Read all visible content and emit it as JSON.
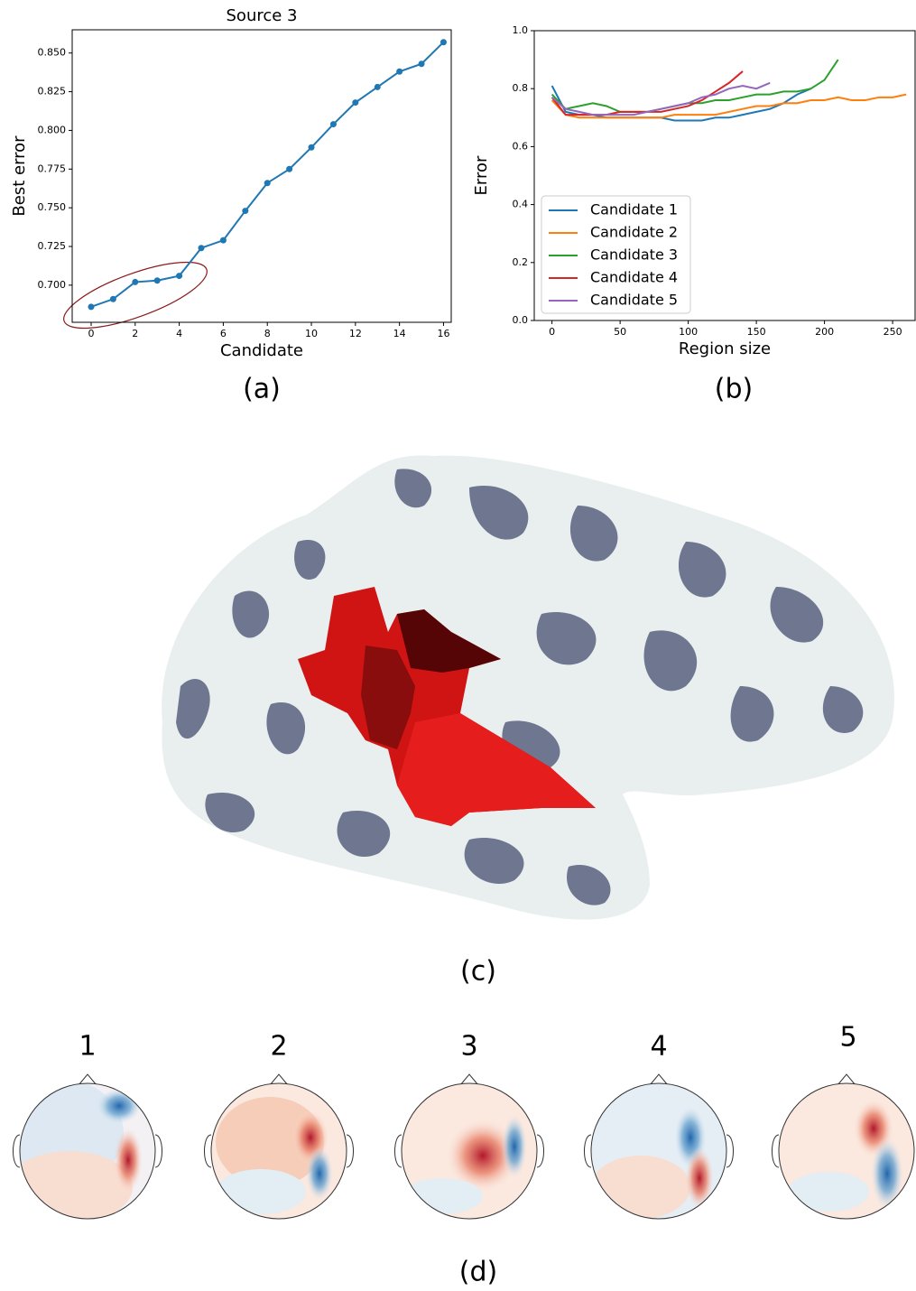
{
  "chart_data": [
    {
      "type": "line",
      "title": "Source 3",
      "xlabel": "Candidate",
      "ylabel": "Best error",
      "x": [
        0,
        1,
        2,
        3,
        4,
        5,
        6,
        7,
        8,
        9,
        10,
        11,
        12,
        13,
        14,
        15,
        16
      ],
      "values": [
        0.686,
        0.691,
        0.702,
        0.703,
        0.706,
        0.724,
        0.729,
        0.748,
        0.766,
        0.775,
        0.789,
        0.804,
        0.818,
        0.828,
        0.838,
        0.843,
        0.857
      ],
      "color": "#1f77b4",
      "markers": true,
      "xlim": [
        -0.86,
        16.35
      ],
      "ylim": [
        0.676,
        0.865
      ],
      "xticks": [
        0,
        2,
        4,
        6,
        8,
        10,
        12,
        14,
        16
      ],
      "yticks": [
        {
          "value": 0.7,
          "label": "0.700"
        },
        {
          "value": 0.725,
          "label": "0.725"
        },
        {
          "value": 0.75,
          "label": "0.750"
        },
        {
          "value": 0.775,
          "label": "0.775"
        },
        {
          "value": 0.8,
          "label": "0.800"
        },
        {
          "value": 0.825,
          "label": "0.825"
        },
        {
          "value": 0.85,
          "label": "0.850"
        }
      ]
    },
    {
      "type": "line",
      "xlabel": "Region size",
      "ylabel": "Error",
      "legend": "lower left",
      "markers": false,
      "x": [
        0,
        10,
        20,
        30,
        40,
        50,
        60,
        70,
        80,
        90,
        100,
        110,
        120,
        130,
        140,
        150,
        160,
        170,
        180,
        190,
        200,
        210,
        220,
        230,
        240,
        250,
        260
      ],
      "series": [
        {
          "name": "Candidate 1",
          "color": "#1f77b4",
          "values": [
            0.81,
            0.72,
            0.71,
            0.71,
            0.7,
            0.7,
            0.7,
            0.7,
            0.7,
            0.69,
            0.69,
            0.69,
            0.7,
            0.7,
            0.71,
            0.72,
            0.73,
            0.75,
            0.78,
            0.8,
            null,
            null,
            null,
            null,
            null,
            null,
            null
          ]
        },
        {
          "name": "Candidate 2",
          "color": "#ff7f0e",
          "values": [
            0.76,
            0.71,
            0.7,
            0.7,
            0.7,
            0.7,
            0.7,
            0.7,
            0.7,
            0.71,
            0.71,
            0.71,
            0.71,
            0.72,
            0.73,
            0.74,
            0.74,
            0.75,
            0.75,
            0.76,
            0.76,
            0.77,
            0.76,
            0.76,
            0.77,
            0.77,
            0.78
          ]
        },
        {
          "name": "Candidate 3",
          "color": "#2ca02c",
          "values": [
            0.78,
            0.73,
            0.74,
            0.75,
            0.74,
            0.72,
            0.72,
            0.72,
            0.73,
            0.74,
            0.75,
            0.75,
            0.76,
            0.76,
            0.77,
            0.78,
            0.78,
            0.79,
            0.79,
            0.8,
            0.83,
            0.9,
            null,
            null,
            null,
            null,
            null
          ]
        },
        {
          "name": "Candidate 4",
          "color": "#d62728",
          "values": [
            0.77,
            0.71,
            0.71,
            0.71,
            0.71,
            0.72,
            0.72,
            0.72,
            0.72,
            0.73,
            0.74,
            0.76,
            0.79,
            0.82,
            0.86,
            null,
            null,
            null,
            null,
            null,
            null,
            null,
            null,
            null,
            null,
            null,
            null
          ]
        },
        {
          "name": "Candidate 5",
          "color": "#9467bd",
          "values": [
            0.77,
            0.73,
            0.72,
            0.71,
            0.71,
            0.71,
            0.71,
            0.72,
            0.73,
            0.74,
            0.75,
            0.77,
            0.78,
            0.8,
            0.81,
            0.8,
            0.82,
            null,
            null,
            null,
            null,
            null,
            null,
            null,
            null,
            null,
            null
          ]
        }
      ],
      "xlim": [
        -13,
        266.5
      ],
      "ylim": [
        0,
        1
      ],
      "xticks": [
        0,
        50,
        100,
        150,
        200,
        250
      ],
      "yticks": [
        {
          "value": 0,
          "label": "0.0"
        },
        {
          "value": 0.2,
          "label": "0.2"
        },
        {
          "value": 0.4,
          "label": "0.4"
        },
        {
          "value": 0.6,
          "label": "0.6"
        },
        {
          "value": 0.8,
          "label": "0.8"
        },
        {
          "value": 1,
          "label": "1.0"
        }
      ]
    }
  ],
  "panels": {
    "a": "(a)",
    "b": "(b)",
    "c": "(c)",
    "d": "(d)"
  },
  "topomaps": {
    "labels": [
      "1",
      "2",
      "3",
      "4",
      "5"
    ]
  }
}
